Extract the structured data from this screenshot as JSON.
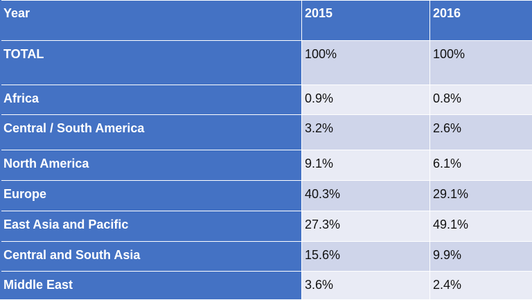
{
  "table": {
    "headers": [
      "Year",
      "2015",
      "2016"
    ],
    "rows": [
      {
        "label": "TOTAL",
        "y2015": "100%",
        "y2016": "100%"
      },
      {
        "label": "Africa",
        "y2015": "0.9%",
        "y2016": "0.8%"
      },
      {
        "label": "Central / South America",
        "y2015": "3.2%",
        "y2016": "2.6%"
      },
      {
        "label": "North America",
        "y2015": "9.1%",
        "y2016": "6.1%"
      },
      {
        "label": "Europe",
        "y2015": "40.3%",
        "y2016": "29.1%"
      },
      {
        "label": "East Asia and Pacific",
        "y2015": "27.3%",
        "y2016": "49.1%"
      },
      {
        "label": "Central and South Asia",
        "y2015": "15.6%",
        "y2016": "9.9%"
      },
      {
        "label": "Middle East",
        "y2015": "3.6%",
        "y2016": "2.4%"
      }
    ]
  },
  "colors": {
    "header_bg": "#4472c4",
    "band_dark": "#cfd5ea",
    "band_light": "#e9ebf5"
  }
}
